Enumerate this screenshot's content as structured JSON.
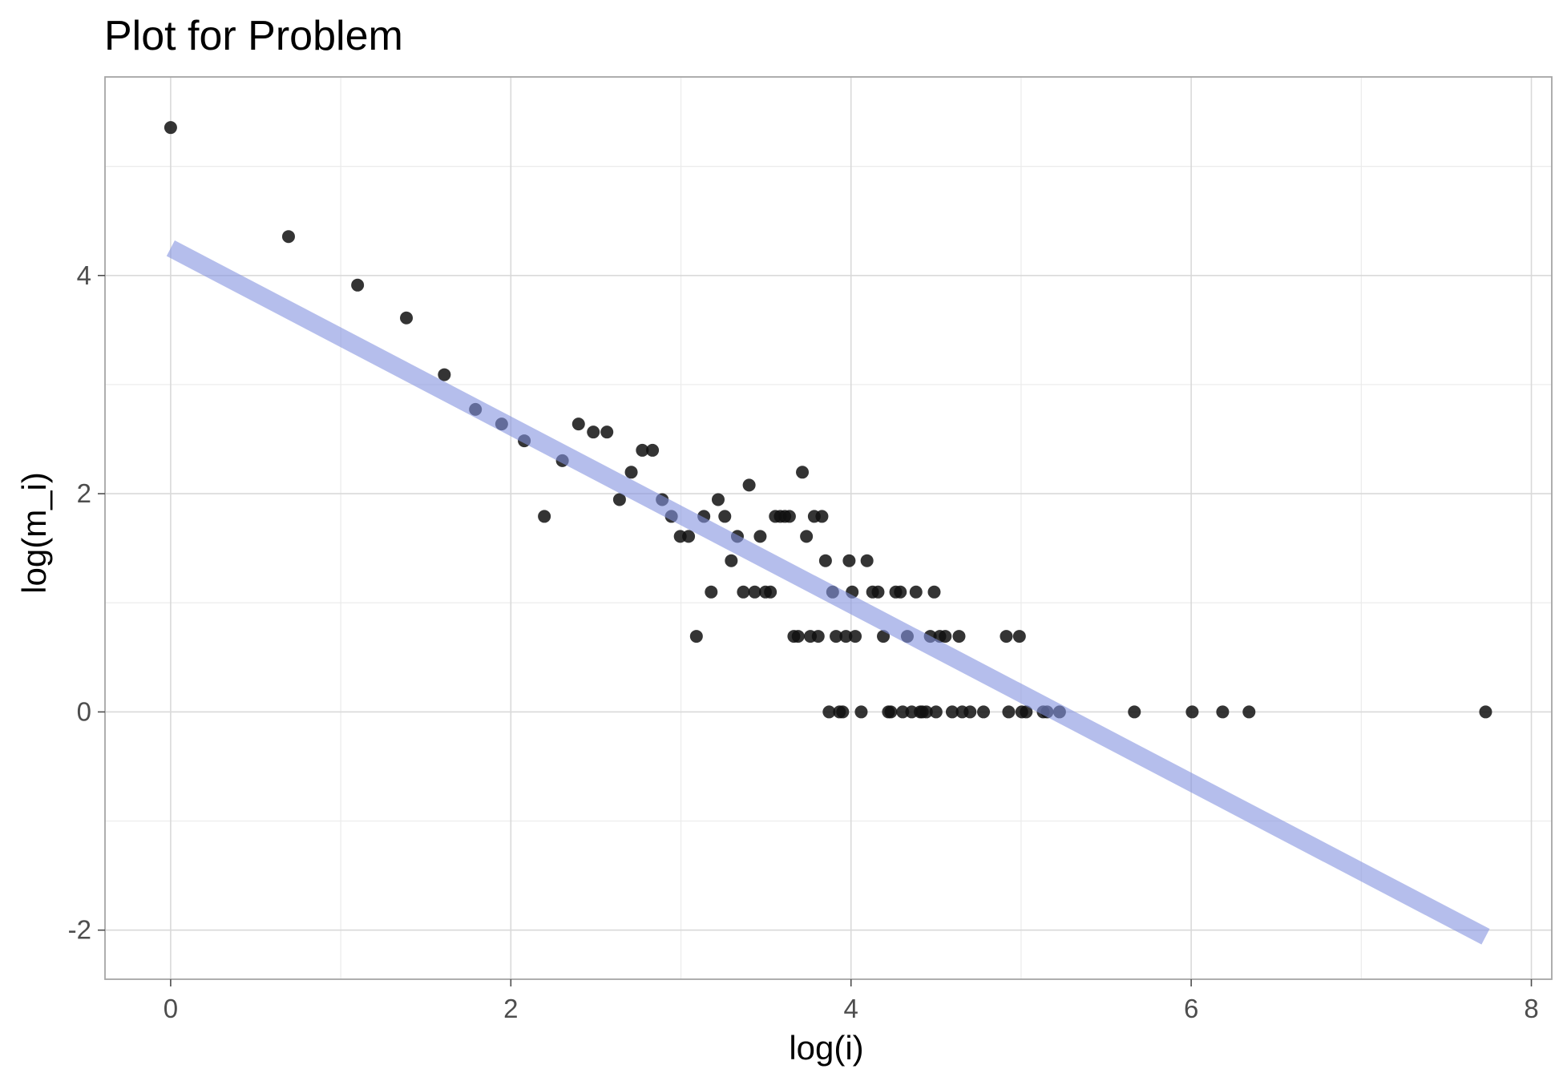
{
  "chart_data": {
    "type": "scatter",
    "title": "Plot for Problem",
    "xlabel": "log(i)",
    "ylabel": "log(m_i)",
    "xlim": [
      -0.386,
      8.12
    ],
    "ylim": [
      -2.45,
      5.82
    ],
    "x_ticks": [
      0,
      2,
      4,
      6,
      8
    ],
    "y_ticks": [
      -2,
      0,
      2,
      4
    ],
    "grid": true,
    "x": [
      0,
      0.693,
      1.099,
      1.386,
      1.609,
      1.792,
      1.946,
      2.079,
      2.197,
      2.303,
      2.398,
      2.485,
      2.565,
      2.639,
      2.708,
      2.773,
      2.833,
      2.89,
      2.944,
      2.996,
      3.045,
      3.091,
      3.135,
      3.178,
      3.219,
      3.258,
      3.296,
      3.332,
      3.367,
      3.401,
      3.434,
      3.466,
      3.497,
      3.526,
      3.555,
      3.584,
      3.611,
      3.638,
      3.664,
      3.689,
      3.714,
      3.738,
      3.761,
      3.784,
      3.807,
      3.829,
      3.85,
      3.871,
      3.892,
      3.912,
      3.932,
      3.951,
      3.97,
      3.989,
      4.007,
      4.025,
      4.06,
      4.094,
      4.127,
      4.159,
      4.19,
      4.22,
      4.234,
      4.263,
      4.29,
      4.304,
      4.331,
      4.357,
      4.382,
      4.407,
      4.419,
      4.443,
      4.466,
      4.489,
      4.5,
      4.522,
      4.554,
      4.595,
      4.635,
      4.654,
      4.7,
      4.779,
      4.913,
      4.927,
      4.99,
      5.004,
      5.03,
      5.13,
      5.153,
      5.226,
      5.666,
      6.006,
      6.185,
      6.34,
      7.731
    ],
    "series": [
      {
        "values": [
          5.356,
          4.357,
          3.912,
          3.611,
          3.091,
          2.773,
          2.639,
          2.485,
          1.792,
          2.303,
          2.639,
          2.565,
          2.565,
          1.946,
          2.197,
          2.398,
          2.398,
          1.946,
          1.792,
          1.609,
          1.609,
          0.693,
          1.792,
          1.099,
          1.946,
          1.792,
          1.386,
          1.609,
          1.099,
          2.079,
          1.099,
          1.609,
          1.099,
          1.099,
          1.792,
          1.792,
          1.792,
          1.792,
          0.693,
          0.693,
          2.197,
          1.609,
          0.693,
          1.792,
          0.693,
          1.792,
          1.386,
          0,
          1.099,
          0.693,
          0,
          0,
          0.693,
          1.386,
          1.099,
          0.693,
          0,
          1.386,
          1.099,
          1.099,
          0.693,
          0,
          0,
          1.099,
          1.099,
          0,
          0.693,
          0,
          1.099,
          0,
          0,
          0,
          0.693,
          1.099,
          0,
          0.693,
          0.693,
          0,
          0.693,
          0,
          0,
          0,
          0.693,
          0,
          0.693,
          0,
          0,
          0,
          0,
          0,
          0,
          0,
          0,
          0,
          0
        ]
      }
    ],
    "fit_line": {
      "x": [
        0,
        7.731
      ],
      "y": [
        4.25,
        -2.06
      ]
    }
  }
}
